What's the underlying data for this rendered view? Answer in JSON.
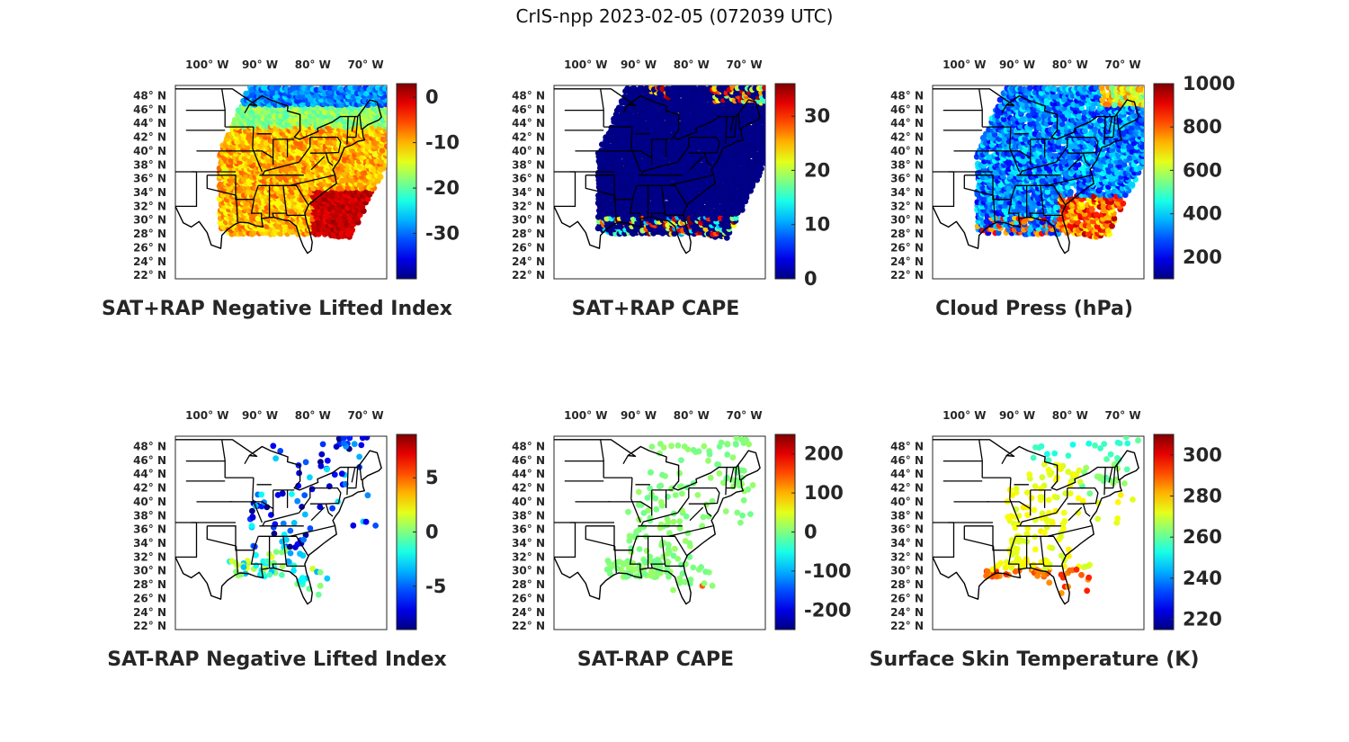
{
  "figure": {
    "title": "CrIS-npp 2023-02-05 (072039 UTC)"
  },
  "axes": {
    "lon_ticks": [
      "100",
      "90",
      "80",
      "70"
    ],
    "lon_hemisphere": "W",
    "lat_ticks": [
      "48",
      "46",
      "44",
      "42",
      "40",
      "38",
      "36",
      "34",
      "32",
      "30",
      "28",
      "26",
      "24",
      "22"
    ],
    "lat_hemisphere": "N",
    "degree_symbol": "°",
    "lon_range": [
      -106,
      -66
    ],
    "lat_range": [
      21.5,
      49.5
    ]
  },
  "colormap": "jet",
  "colors": {
    "map_outline": "#000000",
    "ocean_gap": "#ffffff"
  },
  "chart_data": [
    {
      "id": "p1",
      "type": "heatmap",
      "title": "SAT+RAP Negative Lifted Index",
      "colorbar": {
        "min": -40,
        "max": 3,
        "ticks": [
          0,
          -10,
          -20,
          -30
        ]
      },
      "field": "swath",
      "typical_value": -8,
      "notes": "orange/yellow over land, red in southeast, blue/cyan in north"
    },
    {
      "id": "p2",
      "type": "heatmap",
      "title": "SAT+RAP CAPE",
      "colorbar": {
        "min": 0,
        "max": 36,
        "ticks": [
          0,
          10,
          20,
          30
        ]
      },
      "field": "swath",
      "typical_value": 0,
      "notes": "mostly 0, scattered high values near the Gulf coast and northern edge"
    },
    {
      "id": "p3",
      "type": "heatmap",
      "title": "Cloud Press (hPa)",
      "colorbar": {
        "min": 100,
        "max": 1000,
        "ticks": [
          1000,
          800,
          600,
          400,
          200
        ]
      },
      "field": "cloud",
      "typical_value": 300,
      "notes": "blue over most of the domain, orange/red along the southeast coast"
    },
    {
      "id": "p4",
      "type": "scatter",
      "title": "SAT-RAP Negative Lifted Index",
      "colorbar": {
        "min": -9,
        "max": 9,
        "ticks": [
          5,
          0,
          -5
        ]
      },
      "field": "sparse",
      "typical_value": -3,
      "notes": "blue/cyan dots, greenish along the Gulf coast"
    },
    {
      "id": "p5",
      "type": "scatter",
      "title": "SAT-RAP CAPE",
      "colorbar": {
        "min": -250,
        "max": 250,
        "ticks": [
          200,
          100,
          0,
          -100,
          -200
        ]
      },
      "field": "sparse",
      "typical_value": 0,
      "notes": "mostly near 0 (light green)"
    },
    {
      "id": "p6",
      "type": "scatter",
      "title": "Surface Skin Temperature (K)",
      "colorbar": {
        "min": 215,
        "max": 310,
        "ticks": [
          300,
          280,
          260,
          240,
          220
        ]
      },
      "field": "sparse",
      "typical_value": 270,
      "notes": "yellow inland, red/orange over the Gulf, cyan in the north"
    }
  ]
}
